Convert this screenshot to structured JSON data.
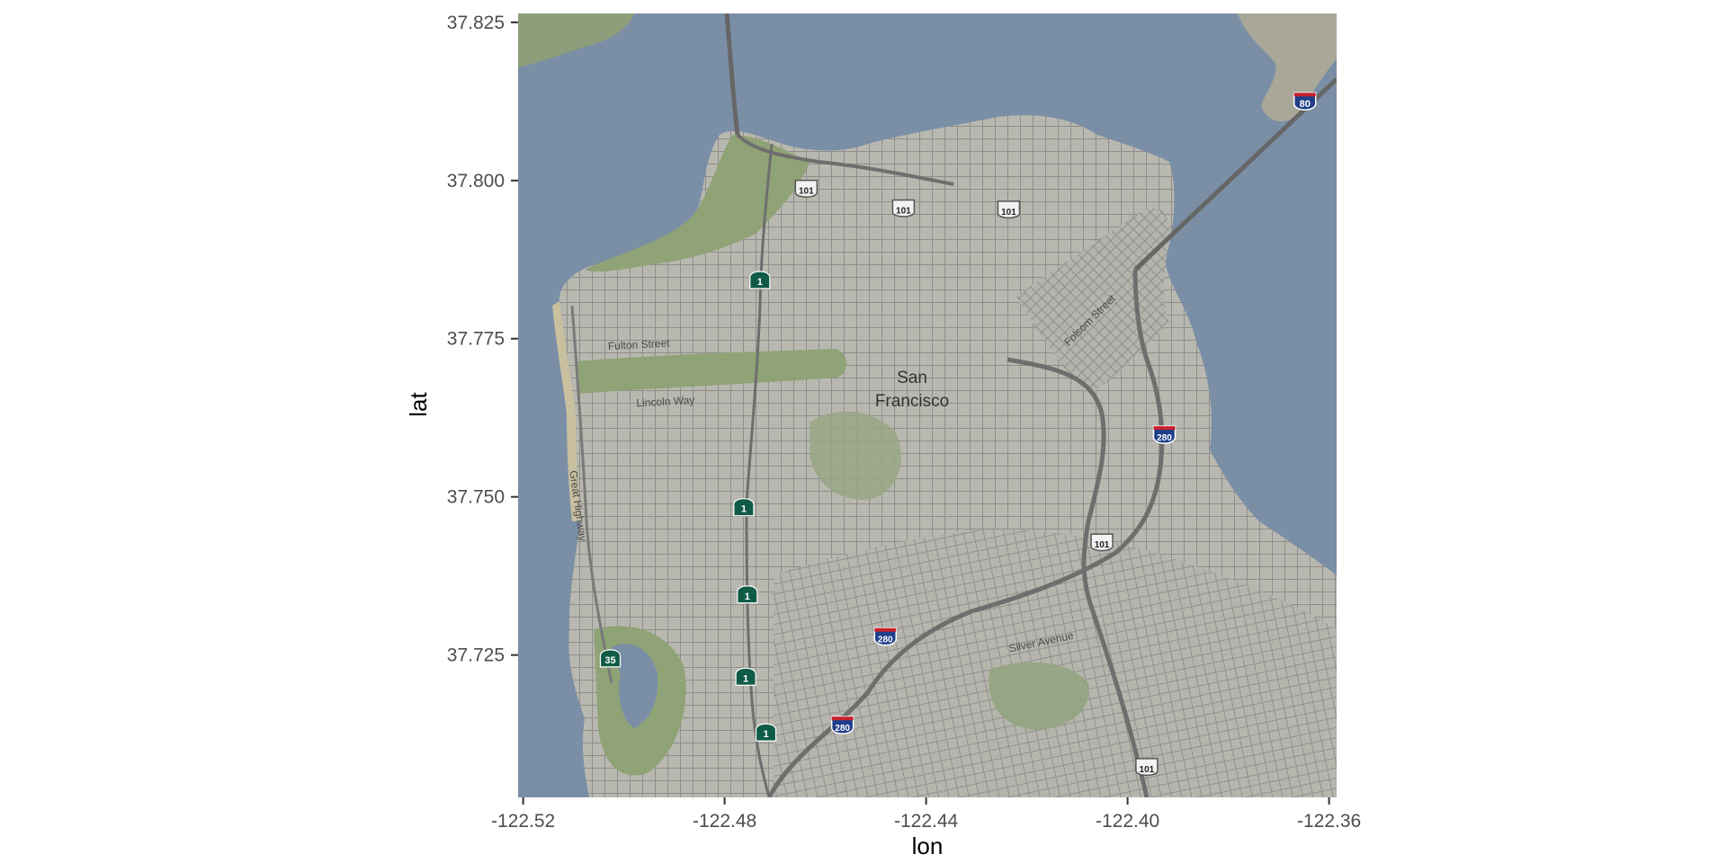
{
  "chart_data": {
    "type": "map",
    "xlabel": "lon",
    "ylabel": "lat",
    "xlim": [
      -122.521,
      -122.3585
    ],
    "ylim": [
      37.7025,
      37.8264
    ],
    "x_ticks": [
      "-122.52",
      "-122.48",
      "-122.44",
      "-122.40",
      "-122.36"
    ],
    "x_tick_values": [
      -122.52,
      -122.48,
      -122.44,
      -122.4,
      -122.36
    ],
    "y_ticks": [
      "37.725",
      "37.750",
      "37.775",
      "37.800",
      "37.825"
    ],
    "y_tick_values": [
      37.725,
      37.75,
      37.775,
      37.8,
      37.825
    ],
    "grid": false,
    "basemap": {
      "water_color": "#7a8fa6",
      "land_color": "#b9b8b0",
      "park_color": "#8fa377",
      "street_color": "#888888",
      "freeway_color": "#6e6e6e",
      "place_label": [
        "San",
        "Francisco"
      ],
      "street_labels": [
        {
          "text": "Fulton Street",
          "lon": -122.497,
          "lat": 37.7735,
          "angle": -3
        },
        {
          "text": "Lincoln Way",
          "lon": -122.4917,
          "lat": 37.7645,
          "angle": -3
        },
        {
          "text": "Great Highway",
          "lon": -122.5098,
          "lat": 37.7485,
          "angle": 82
        },
        {
          "text": "Folsom Street",
          "lon": -122.407,
          "lat": 37.7775,
          "angle": -45
        },
        {
          "text": "Silver Avenue",
          "lon": -122.417,
          "lat": 37.7265,
          "angle": -12
        }
      ],
      "shields": [
        {
          "type": "us",
          "label": "101",
          "lon": -122.4638,
          "lat": 37.7986
        },
        {
          "type": "us",
          "label": "101",
          "lon": -122.4445,
          "lat": 37.7955
        },
        {
          "type": "us",
          "label": "101",
          "lon": -122.4236,
          "lat": 37.7953
        },
        {
          "type": "us",
          "label": "101",
          "lon": -122.4051,
          "lat": 37.7427
        },
        {
          "type": "us",
          "label": "101",
          "lon": -122.3962,
          "lat": 37.7072
        },
        {
          "type": "interstate",
          "label": "80",
          "lon": -122.3648,
          "lat": 37.8123
        },
        {
          "type": "interstate",
          "label": "280",
          "lon": -122.3927,
          "lat": 37.7596
        },
        {
          "type": "interstate",
          "label": "280",
          "lon": -122.4481,
          "lat": 37.7277
        },
        {
          "type": "interstate",
          "label": "280",
          "lon": -122.4566,
          "lat": 37.7137
        },
        {
          "type": "ca",
          "label": "1",
          "lon": -122.473,
          "lat": 37.7842
        },
        {
          "type": "ca",
          "label": "1",
          "lon": -122.4762,
          "lat": 37.7483
        },
        {
          "type": "ca",
          "label": "1",
          "lon": -122.4755,
          "lat": 37.7345
        },
        {
          "type": "ca",
          "label": "1",
          "lon": -122.4758,
          "lat": 37.7215
        },
        {
          "type": "ca",
          "label": "1",
          "lon": -122.4718,
          "lat": 37.7127
        },
        {
          "type": "ca",
          "label": "35",
          "lon": -122.5027,
          "lat": 37.7244
        }
      ]
    }
  }
}
